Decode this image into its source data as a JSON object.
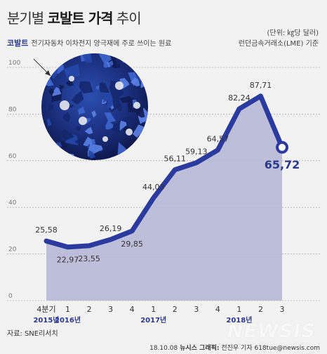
{
  "header": {
    "title_light_1": "분기별",
    "title_bold": "코발트 가격",
    "title_light_2": "추이",
    "unit": "(단위: ㎏당 달러)",
    "source_note": "런던금속거래소(LME) 기준"
  },
  "description": {
    "highlight": "코발트",
    "text": "전기자동차 이차전지 양극재에 주로 쓰이는 원료"
  },
  "footer": {
    "source": "자료: SNE리서치",
    "credit_date": "18.10.08",
    "credit_agency": "뉴시스 그래픽:",
    "credit_author": "전진우 기자 618tue@newsis.com",
    "watermark": "NEWSIS"
  },
  "colors": {
    "line": "#2a3a9e",
    "area": "#b7b8d6",
    "year_label": "#2a3a8c",
    "grid": "#9a9a9a"
  },
  "chart_data": {
    "type": "area",
    "categories": [
      "4분기",
      "1",
      "2",
      "3",
      "4",
      "1",
      "2",
      "3",
      "4",
      "1",
      "2",
      "3"
    ],
    "years": [
      {
        "label": "2015년",
        "index": 0
      },
      {
        "label": "2016년",
        "index": 1
      },
      {
        "label": "2017년",
        "index": 5
      },
      {
        "label": "2018년",
        "index": 9
      }
    ],
    "values": [
      25.58,
      22.97,
      23.55,
      26.19,
      29.85,
      44.03,
      56.11,
      59.13,
      64.57,
      82.24,
      87.71,
      65.72
    ],
    "value_labels": [
      "25,58",
      "22,97",
      "23,55",
      "26,19",
      "29,85",
      "44,03",
      "56,11",
      "59,13",
      "64,57",
      "82,24",
      "87,71",
      "65,72"
    ],
    "yticks": [
      0,
      20,
      40,
      60,
      80,
      100
    ],
    "ylim": [
      0,
      100
    ],
    "grid": true
  }
}
